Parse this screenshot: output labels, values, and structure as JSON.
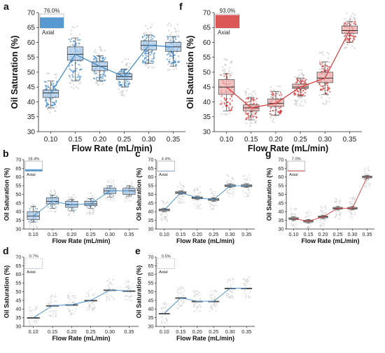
{
  "chart_data": [
    {
      "panel": "a",
      "type": "box",
      "color": "#3a86c8",
      "ylabel": "Oil Saturation (%)",
      "xlabel": "Flow Rate (mL/min)",
      "ylim": [
        30,
        70
      ],
      "yticks": [
        30,
        35,
        40,
        45,
        50,
        55,
        60,
        65,
        70
      ],
      "categories": [
        "0.10",
        "0.15",
        "0.20",
        "0.25",
        "0.30",
        "0.35"
      ],
      "medians": [
        43,
        56,
        52,
        48.5,
        59,
        58.5
      ],
      "q1": [
        41.5,
        54,
        50.5,
        47.5,
        57.5,
        57
      ],
      "q3": [
        44,
        58.5,
        53.5,
        49.5,
        60.5,
        60
      ],
      "whisker_low": [
        38,
        47,
        47,
        45,
        53,
        52
      ],
      "whisker_high": [
        47,
        61.5,
        55.5,
        51,
        62.5,
        62
      ],
      "legend_pct": "76.0%",
      "legend_label": "Axial"
    },
    {
      "panel": "f",
      "type": "box",
      "color": "#d63a3a",
      "ylabel": "Oil Saturation (%)",
      "xlabel": "Flow Rate (mL/min)",
      "ylim": [
        30,
        70
      ],
      "yticks": [
        30,
        35,
        40,
        45,
        50,
        55,
        60,
        65,
        70
      ],
      "categories": [
        "0.10",
        "0.15",
        "0.20",
        "0.25",
        "0.30",
        "0.35"
      ],
      "medians": [
        45,
        38,
        39.5,
        45,
        48,
        64
      ],
      "q1": [
        42.5,
        37,
        38.5,
        44.5,
        46.5,
        63
      ],
      "q3": [
        47.5,
        39,
        41,
        46,
        50,
        65.5
      ],
      "whisker_low": [
        37,
        34,
        35.5,
        42,
        42.5,
        60
      ],
      "whisker_high": [
        49.5,
        41.5,
        43.5,
        48,
        53.5,
        67
      ],
      "legend_pct": "93.0%",
      "legend_label": "Axial"
    },
    {
      "panel": "b",
      "type": "box",
      "color": "#3a86c8",
      "ylabel": "Oil Saturation (%)",
      "xlabel": "Flow Rate (mL/min)",
      "ylim": [
        30,
        70
      ],
      "yticks": [
        30,
        35,
        40,
        45,
        50,
        55,
        60,
        65,
        70
      ],
      "categories": [
        "0.10",
        "0.15",
        "0.20",
        "0.25",
        "0.30",
        "0.35"
      ],
      "medians": [
        37.5,
        46,
        44,
        44.5,
        52,
        52
      ],
      "q1": [
        35.5,
        44.5,
        42.5,
        43.5,
        50.5,
        50
      ],
      "q3": [
        40,
        48,
        46,
        46,
        53.5,
        53.5
      ],
      "whisker_low": [
        34,
        42,
        40.5,
        42,
        48.5,
        49
      ],
      "whisker_high": [
        43,
        49.5,
        47,
        47.5,
        55,
        55
      ],
      "legend_pct": "18.4%",
      "legend_label": "Axial"
    },
    {
      "panel": "c",
      "type": "box",
      "color": "#3a86c8",
      "ylabel": "Oil Saturation (%)",
      "xlabel": "Flow Rate (mL/min)",
      "ylim": [
        30,
        70
      ],
      "yticks": [
        30,
        35,
        40,
        45,
        50,
        55,
        60,
        65,
        70
      ],
      "categories": [
        "0.10",
        "0.15",
        "0.20",
        "0.25",
        "0.30",
        "0.35"
      ],
      "medians": [
        41,
        51,
        48,
        47,
        55,
        55
      ],
      "q1": [
        40.5,
        50.5,
        47.5,
        46.5,
        54.5,
        54.5
      ],
      "q3": [
        41.5,
        51.5,
        48.5,
        47.5,
        55.5,
        55.5
      ],
      "whisker_low": [
        40,
        50,
        47,
        46,
        54,
        54
      ],
      "whisker_high": [
        42,
        52,
        49,
        48,
        56,
        56
      ],
      "legend_pct": "4.4%",
      "legend_label": "Axial"
    },
    {
      "panel": "g",
      "type": "box",
      "color": "#d63a3a",
      "ylabel": "Oil Saturation (%)",
      "xlabel": "Flow Rate (mL/min)",
      "ylim": [
        30,
        70
      ],
      "yticks": [
        30,
        35,
        40,
        45,
        50,
        55,
        60,
        65,
        70
      ],
      "categories": [
        "0.10",
        "0.15",
        "0.20",
        "0.25",
        "0.30",
        "0.35"
      ],
      "medians": [
        36,
        34.5,
        37,
        42,
        42,
        60
      ],
      "q1": [
        35.5,
        34,
        36.5,
        41.5,
        41.5,
        59.5
      ],
      "q3": [
        36.5,
        35,
        37.5,
        42.5,
        42.5,
        60.5
      ],
      "whisker_low": [
        35,
        33.5,
        36,
        41,
        41,
        59
      ],
      "whisker_high": [
        37,
        35.5,
        38,
        43,
        43,
        61
      ],
      "legend_pct": "7.0%",
      "legend_label": "Axial"
    },
    {
      "panel": "d",
      "type": "box",
      "color": "#3a86c8",
      "ylabel": "Oil Saturation (%)",
      "xlabel": "Flow Rate (mL/min)",
      "ylim": [
        30,
        70
      ],
      "yticks": [
        30,
        35,
        40,
        45,
        50,
        55,
        60,
        65,
        70
      ],
      "categories": [
        "0.10",
        "0.15",
        "0.20",
        "0.25",
        "0.30",
        "0.35"
      ],
      "medians": [
        35,
        42,
        42.5,
        45,
        51,
        50.5
      ],
      "q1": [
        35,
        42,
        42.5,
        45,
        51,
        50.5
      ],
      "q3": [
        35,
        42,
        42.5,
        45,
        51,
        50.5
      ],
      "whisker_low": [
        35,
        42,
        42.5,
        45,
        51,
        50.5
      ],
      "whisker_high": [
        35,
        42,
        42.5,
        45,
        51,
        50.5
      ],
      "legend_pct": "0.7%",
      "legend_label": "Axial"
    },
    {
      "panel": "e",
      "type": "box",
      "color": "#3a86c8",
      "ylabel": "Oil Saturation (%)",
      "xlabel": "Flow Rate (mL/min)",
      "ylim": [
        30,
        70
      ],
      "yticks": [
        30,
        35,
        40,
        45,
        50,
        55,
        60,
        65,
        70
      ],
      "categories": [
        "0.10",
        "0.15",
        "0.20",
        "0.25",
        "0.30",
        "0.35"
      ],
      "medians": [
        37.5,
        46.5,
        44.5,
        44.5,
        52,
        52
      ],
      "q1": [
        37.5,
        46.5,
        44.5,
        44.5,
        52,
        52
      ],
      "q3": [
        37.5,
        46.5,
        44.5,
        44.5,
        52,
        52
      ],
      "whisker_low": [
        37.5,
        46.5,
        44.5,
        44.5,
        52,
        52
      ],
      "whisker_high": [
        37.5,
        46.5,
        44.5,
        44.5,
        52,
        52
      ],
      "legend_pct": "0.5%",
      "legend_label": "Axial"
    }
  ]
}
